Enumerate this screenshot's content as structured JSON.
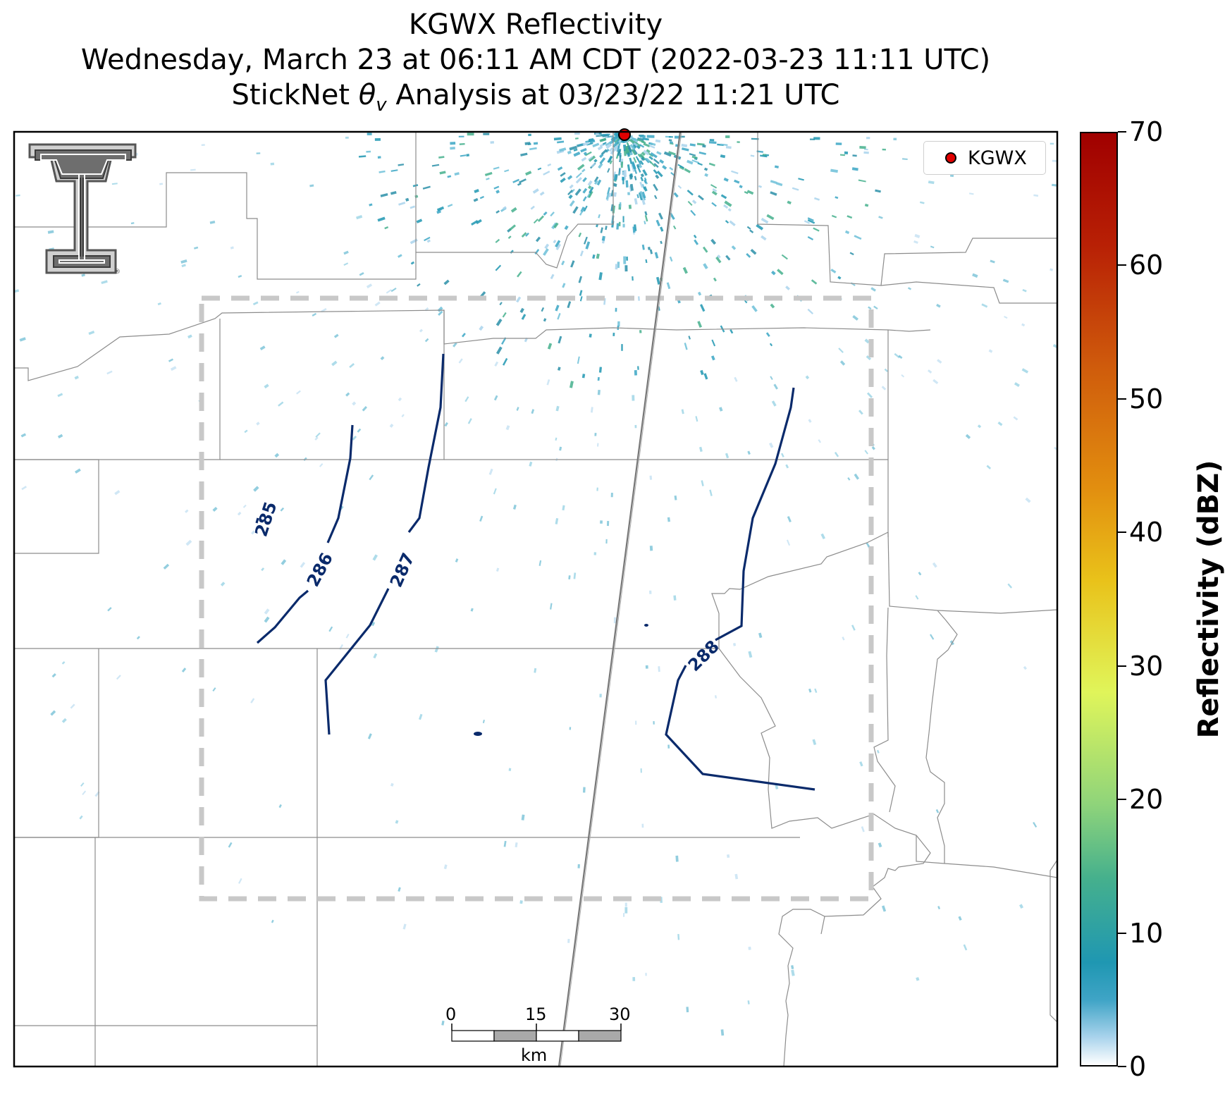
{
  "title": {
    "line1": "KGWX Reflectivity",
    "line2": "Wednesday, March 23 at 06:11 AM CDT (2022-03-23 11:11 UTC)",
    "line3_prefix": "StickNet ",
    "line3_symbol": "θ",
    "line3_subscript": "v",
    "line3_suffix": " Analysis at 03/23/22 11:21 UTC"
  },
  "legend": {
    "label": "KGWX",
    "marker_color": "#e00000"
  },
  "contours": [
    {
      "label": "285",
      "color": "#0a2a6b"
    },
    {
      "label": "286",
      "color": "#0a2a6b"
    },
    {
      "label": "287",
      "color": "#0a2a6b"
    },
    {
      "label": "288",
      "color": "#0a2a6b"
    }
  ],
  "colorbar": {
    "label": "Reflectivity (dBZ)",
    "min": 0,
    "max": 70,
    "ticks": [
      "0",
      "10",
      "20",
      "30",
      "40",
      "50",
      "60",
      "70"
    ],
    "colors": [
      "#ffffff",
      "#1f97b2",
      "#8fd47a",
      "#e0f55a",
      "#e9c21a",
      "#e28e0f",
      "#cf5b0c",
      "#a00000"
    ]
  },
  "scale_bar": {
    "ticks": [
      "0",
      "15",
      "30"
    ],
    "unit": "km"
  },
  "logo": {
    "name": "texas-tech-double-t-logo"
  }
}
